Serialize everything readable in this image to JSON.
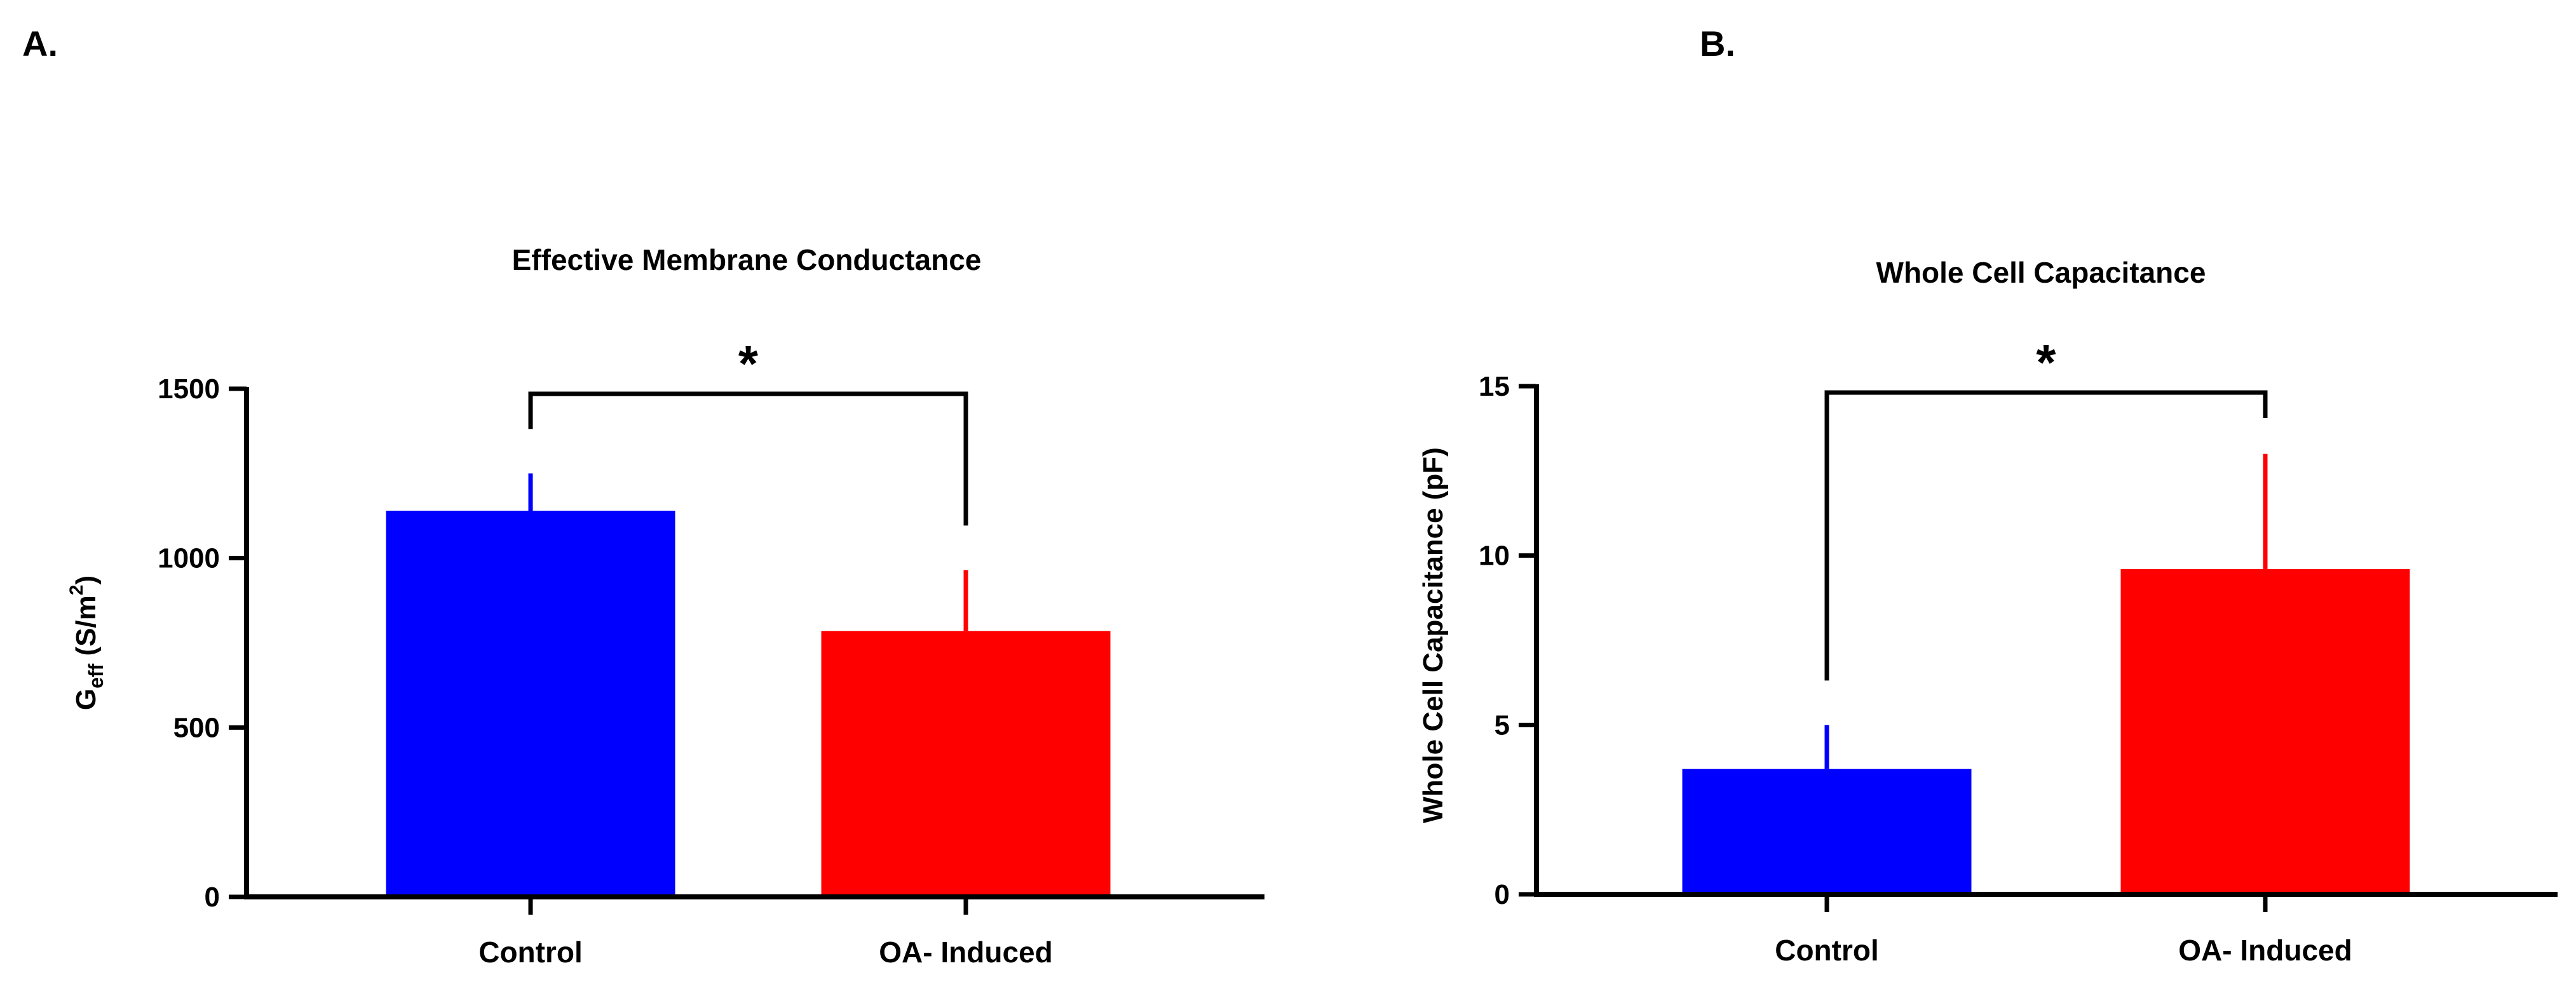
{
  "chart_data": [
    {
      "type": "bar",
      "panel_label": "A.",
      "title": "Effective Membrane Conductance",
      "ylabel": {
        "main": "G",
        "sub": "eff",
        "pre_sup": " (S/m",
        "sup": "2",
        "post": ")"
      },
      "xlabel": "",
      "categories": [
        "Control",
        "OA- Induced"
      ],
      "values": [
        1140,
        785
      ],
      "errors": [
        110,
        180
      ],
      "colors": [
        "#0000ff",
        "#ff0000"
      ],
      "ylim": [
        0,
        1500
      ],
      "yticks": [
        0,
        500,
        1000,
        1500
      ],
      "ytick_labels": [
        "0",
        "500",
        "1000",
        "1500"
      ],
      "significance": {
        "label": "*",
        "between": [
          0,
          1
        ]
      }
    },
    {
      "type": "bar",
      "panel_label": "B.",
      "title": "Whole Cell Capacitance",
      "ylabel": "Whole Cell Capacitance (pF)",
      "xlabel": "",
      "categories": [
        "Control",
        "OA- Induced"
      ],
      "values": [
        3.7,
        9.6
      ],
      "errors": [
        1.3,
        3.4
      ],
      "colors": [
        "#0000ff",
        "#ff0000"
      ],
      "ylim": [
        0,
        15
      ],
      "yticks": [
        0,
        5,
        10,
        15
      ],
      "ytick_labels": [
        "0",
        "5",
        "10",
        "15"
      ],
      "significance": {
        "label": "*",
        "between": [
          0,
          1
        ]
      }
    }
  ]
}
